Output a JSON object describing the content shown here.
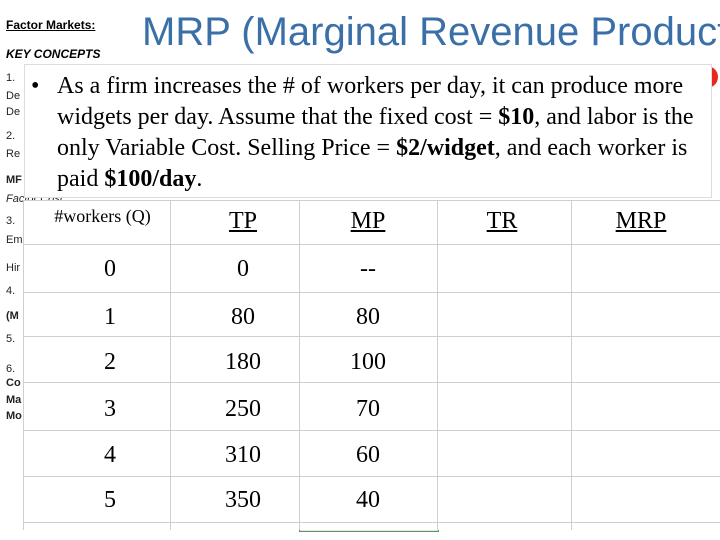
{
  "sidebar": {
    "title": "Factor Markets:",
    "subtitle": "KEY CONCEPTS",
    "fragments": [
      {
        "text": "1.",
        "cls": ""
      },
      {
        "text": "De",
        "cls": ""
      },
      {
        "text": "De",
        "cls": ""
      },
      {
        "text": "2.",
        "cls": ""
      },
      {
        "text": "Re",
        "cls": ""
      },
      {
        "text": "MF",
        "cls": "bold"
      },
      {
        "text": "Factor Cost",
        "cls": "ital"
      },
      {
        "text": "3.",
        "cls": ""
      },
      {
        "text": "Em",
        "cls": ""
      },
      {
        "text": "Hir",
        "cls": ""
      },
      {
        "text": "4.",
        "cls": ""
      },
      {
        "text": "(M",
        "cls": "bold"
      },
      {
        "text": "5.",
        "cls": ""
      },
      {
        "text": "6.",
        "cls": ""
      },
      {
        "text": "Co",
        "cls": "bold"
      },
      {
        "text": "Ma",
        "cls": "bold"
      },
      {
        "text": "Mo",
        "cls": "bold"
      }
    ]
  },
  "slide": {
    "title": "MRP (Marginal Revenue Product)",
    "bullet_dot": "•",
    "bullet_parts": [
      "As a firm increases the # of workers per day, it can produce more widgets per day.  Assume that the fixed cost = ",
      "$10",
      ", and labor is the only Variable Cost.  Selling Price = ",
      "$2/widget",
      ", and each worker is paid ",
      "$100/day",
      "."
    ]
  },
  "table": {
    "headers": {
      "q": "#workers (Q)",
      "tp": "TP",
      "mp": "MP",
      "tr": "TR",
      "mrp": "MRP"
    },
    "rows": [
      {
        "q": "0",
        "tp": "0",
        "mp": "--"
      },
      {
        "q": "1",
        "tp": "80",
        "mp": "80"
      },
      {
        "q": "2",
        "tp": "180",
        "mp": "100"
      },
      {
        "q": "3",
        "tp": "250",
        "mp": "70"
      },
      {
        "q": "4",
        "tp": "310",
        "mp": "60"
      },
      {
        "q": "5",
        "tp": "350",
        "mp": "40"
      }
    ]
  },
  "colors": {
    "title": "#3a6fa8",
    "mp_column": "#d7f0d7",
    "accent_red": "#e6281e"
  }
}
